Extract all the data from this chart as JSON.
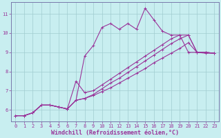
{
  "xlabel": "Windchill (Refroidissement éolien,°C)",
  "bg_color": "#c8eef0",
  "grid_color": "#a0ccd0",
  "line_color": "#993399",
  "xlim": [
    -0.5,
    23.5
  ],
  "ylim": [
    5.4,
    11.6
  ],
  "xticks": [
    0,
    1,
    2,
    3,
    4,
    5,
    6,
    7,
    8,
    9,
    10,
    11,
    12,
    13,
    14,
    15,
    16,
    17,
    18,
    19,
    20,
    21,
    22,
    23
  ],
  "yticks": [
    6,
    7,
    8,
    9,
    10,
    11
  ],
  "line1_x": [
    0,
    1,
    2,
    3,
    4,
    5,
    6,
    7,
    8,
    9,
    10,
    11,
    12,
    13,
    14,
    15,
    16,
    17,
    18,
    19,
    20,
    21,
    22,
    23
  ],
  "line1_y": [
    5.7,
    5.7,
    5.85,
    6.25,
    6.25,
    6.15,
    6.05,
    6.5,
    8.8,
    9.35,
    10.3,
    10.5,
    10.2,
    10.5,
    10.2,
    11.3,
    10.7,
    10.1,
    9.9,
    9.9,
    9.0,
    9.0,
    8.95,
    8.95
  ],
  "line2_x": [
    0,
    1,
    2,
    3,
    4,
    5,
    6,
    7,
    8,
    9,
    10,
    11,
    12,
    13,
    14,
    15,
    16,
    17,
    18,
    19,
    20,
    21,
    22,
    23
  ],
  "line2_y": [
    5.7,
    5.7,
    5.85,
    6.25,
    6.25,
    6.15,
    6.05,
    7.5,
    6.9,
    7.0,
    7.3,
    7.6,
    7.9,
    8.2,
    8.5,
    8.8,
    9.1,
    9.4,
    9.7,
    9.9,
    9.9,
    9.0,
    9.0,
    8.95
  ],
  "line3_x": [
    0,
    1,
    2,
    3,
    4,
    5,
    6,
    7,
    8,
    9,
    10,
    11,
    12,
    13,
    14,
    15,
    16,
    17,
    18,
    19,
    20,
    21,
    22,
    23
  ],
  "line3_y": [
    5.7,
    5.7,
    5.85,
    6.25,
    6.25,
    6.15,
    6.05,
    6.5,
    6.6,
    6.8,
    7.1,
    7.4,
    7.65,
    7.95,
    8.25,
    8.55,
    8.85,
    9.15,
    9.45,
    9.7,
    9.9,
    9.0,
    9.0,
    8.95
  ],
  "line4_x": [
    0,
    1,
    2,
    3,
    4,
    5,
    6,
    7,
    8,
    9,
    10,
    11,
    12,
    13,
    14,
    15,
    16,
    17,
    18,
    19,
    20,
    21,
    22,
    23
  ],
  "line4_y": [
    5.7,
    5.7,
    5.85,
    6.25,
    6.25,
    6.15,
    6.05,
    6.5,
    6.6,
    6.75,
    6.95,
    7.15,
    7.4,
    7.65,
    7.9,
    8.15,
    8.45,
    8.7,
    8.95,
    9.2,
    9.5,
    9.0,
    9.0,
    8.95
  ],
  "marker_size": 2.5,
  "line_width": 0.8,
  "tick_fontsize": 5.0,
  "xlabel_fontsize": 6.0,
  "spine_color": "#7777aa"
}
